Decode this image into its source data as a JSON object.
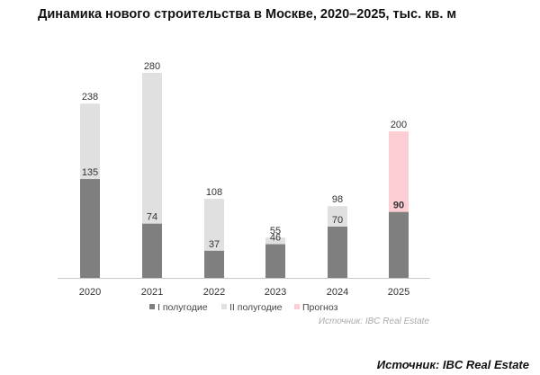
{
  "chart_data": {
    "type": "bar",
    "title": "Динамика нового строительства в Москве, 2020–2025, тыс. кв. м",
    "categories": [
      "2020",
      "2021",
      "2022",
      "2023",
      "2024",
      "2025"
    ],
    "series": [
      {
        "name": "I полугодие",
        "values": [
          135,
          74,
          37,
          46,
          70,
          90
        ],
        "color": "#7f7f7f"
      },
      {
        "name": "II полугодие",
        "values": [
          238,
          280,
          108,
          55,
          98,
          null
        ],
        "color": "#e0e0e0"
      },
      {
        "name": "Прогноз",
        "values": [
          null,
          null,
          null,
          null,
          null,
          200
        ],
        "color": "#fccdd3"
      }
    ],
    "bold_labels": [
      "90"
    ],
    "source_note": "Источник: IBC Real Estate",
    "legend_position": "bottom",
    "grid": false
  },
  "footer": {
    "source": "Источник: IBC Real Estate"
  }
}
